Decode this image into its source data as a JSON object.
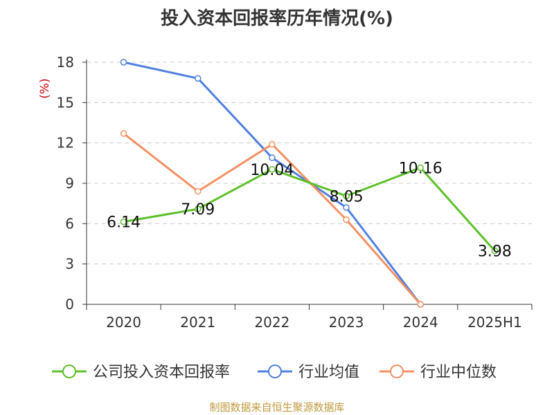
{
  "title": "投入资本回报率历年情况(%)",
  "source": "制图数据来自恒生聚源数据库",
  "colors": {
    "company": "#5cc12a",
    "industry_avg": "#4f80df",
    "industry_median": "#f39062",
    "grid": "#cccccc",
    "axis": "#333333",
    "unit": "#cc0000"
  },
  "chart_data": {
    "type": "line",
    "title": "投入资本回报率历年情况(%)",
    "ylabel": "(%)",
    "categories": [
      "2020",
      "2021",
      "2022",
      "2023",
      "2024",
      "2025H1"
    ],
    "ylim": [
      0,
      18
    ],
    "yticks": [
      0,
      3,
      6,
      9,
      12,
      15,
      18
    ],
    "grid": true,
    "legend_position": "bottom",
    "series": [
      {
        "name": "公司投入资本回报率",
        "values": [
          6.14,
          7.09,
          10.04,
          8.05,
          10.16,
          3.98
        ],
        "labels": [
          "6.14",
          "7.09",
          "10.04",
          "8.05",
          "10.16",
          "3.98"
        ]
      },
      {
        "name": "行业均值",
        "values": [
          18.0,
          16.8,
          10.9,
          7.2,
          0.0,
          null
        ]
      },
      {
        "name": "行业中位数",
        "values": [
          12.7,
          8.4,
          11.9,
          6.3,
          0.0,
          null
        ]
      }
    ]
  }
}
